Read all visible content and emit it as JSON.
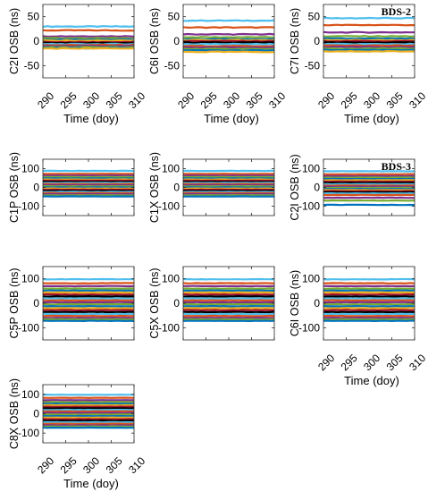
{
  "figure": {
    "chart_data": [
      {
        "type": "line",
        "ylabel": "C2I OSB (ns)",
        "xlabel": "Time (doy)",
        "xlim": [
          290,
          310
        ],
        "ylim": [
          -75,
          75
        ],
        "xticks": [
          "290",
          "295",
          "300",
          "305",
          "310"
        ],
        "yticks": [
          "50",
          "0",
          "-50"
        ],
        "legend": "",
        "series_levels": [
          30,
          22,
          10,
          6,
          3,
          1,
          -2,
          -4,
          -6,
          -8,
          -10,
          -12,
          -14,
          -15
        ]
      },
      {
        "type": "line",
        "ylabel": "C6I OSB (ns)",
        "xlabel": "Time (doy)",
        "xlim": [
          290,
          310
        ],
        "ylim": [
          -75,
          75
        ],
        "xticks": [
          "290",
          "295",
          "300",
          "305",
          "310"
        ],
        "yticks": [
          "50",
          "0",
          "-50"
        ],
        "legend": "",
        "series_levels": [
          42,
          28,
          14,
          8,
          4,
          2,
          0,
          -3,
          -6,
          -10,
          -13,
          -16,
          -19,
          -22
        ]
      },
      {
        "type": "line",
        "ylabel": "C7I OSB (ns)",
        "xlabel": "Time (doy)",
        "xlim": [
          290,
          310
        ],
        "ylim": [
          -75,
          75
        ],
        "xticks": [
          "290",
          "295",
          "300",
          "305",
          "310"
        ],
        "yticks": [
          "50",
          "0",
          "-50"
        ],
        "legend": "BDS-2",
        "series_levels": [
          47,
          33,
          18,
          10,
          5,
          2,
          0,
          -3,
          -6,
          -9,
          -12,
          -15,
          -18,
          -21
        ]
      },
      {
        "type": "line",
        "ylabel": "C1P OSB (ns)",
        "xlabel": "",
        "xlim": [
          290,
          310
        ],
        "ylim": [
          -150,
          150
        ],
        "xticks": [],
        "yticks": [
          "100",
          "0",
          "-100"
        ],
        "legend": "",
        "series_levels": [
          88,
          72,
          63,
          55,
          48,
          42,
          36,
          30,
          24,
          18,
          12,
          6,
          0,
          -6,
          -12,
          -18,
          -24,
          -30,
          -36,
          -42,
          -48
        ]
      },
      {
        "type": "line",
        "ylabel": "C1X OSB (ns)",
        "xlabel": "",
        "xlim": [
          290,
          310
        ],
        "ylim": [
          -150,
          150
        ],
        "xticks": [],
        "yticks": [
          "100",
          "0",
          "-100"
        ],
        "legend": "",
        "series_levels": [
          88,
          72,
          63,
          55,
          48,
          42,
          36,
          30,
          24,
          18,
          12,
          6,
          0,
          -6,
          -12,
          -18,
          -24,
          -30,
          -36,
          -42,
          -48
        ]
      },
      {
        "type": "line",
        "ylabel": "C2I OSB (ns)",
        "xlabel": "",
        "xlim": [
          290,
          310
        ],
        "ylim": [
          -150,
          150
        ],
        "xticks": [],
        "yticks": [
          "100",
          "0",
          "-100"
        ],
        "legend": "BDS-3",
        "series_levels": [
          86,
          70,
          60,
          52,
          45,
          38,
          31,
          24,
          17,
          10,
          4,
          -2,
          -8,
          -14,
          -20,
          -26,
          -32,
          -40,
          -55,
          -70,
          -93
        ]
      },
      {
        "type": "line",
        "ylabel": "C5P OSB (ns)",
        "xlabel": "",
        "xlim": [
          290,
          310
        ],
        "ylim": [
          -150,
          150
        ],
        "xticks": [],
        "yticks": [
          "100",
          "0",
          "-100"
        ],
        "legend": "",
        "series_levels": [
          98,
          82,
          70,
          60,
          52,
          44,
          36,
          28,
          20,
          12,
          4,
          -4,
          -12,
          -20,
          -28,
          -36,
          -44,
          -52,
          -60,
          -66,
          -72
        ]
      },
      {
        "type": "line",
        "ylabel": "C5X OSB (ns)",
        "xlabel": "",
        "xlim": [
          290,
          310
        ],
        "ylim": [
          -150,
          150
        ],
        "xticks": [],
        "yticks": [
          "100",
          "0",
          "-100"
        ],
        "legend": "",
        "series_levels": [
          98,
          82,
          70,
          60,
          52,
          44,
          36,
          28,
          20,
          12,
          4,
          -4,
          -12,
          -20,
          -28,
          -36,
          -44,
          -52,
          -60,
          -66,
          -72
        ]
      },
      {
        "type": "line",
        "ylabel": "C6I OSB (ns)",
        "xlabel": "Time (doy)",
        "xlim": [
          290,
          310
        ],
        "ylim": [
          -150,
          150
        ],
        "xticks": [
          "290",
          "295",
          "300",
          "305",
          "310"
        ],
        "yticks": [
          "100",
          "0",
          "-100"
        ],
        "legend": "",
        "series_levels": [
          98,
          82,
          70,
          60,
          52,
          44,
          36,
          28,
          20,
          12,
          4,
          -4,
          -12,
          -20,
          -28,
          -36,
          -44,
          -52,
          -60,
          -66,
          -72
        ]
      },
      {
        "type": "line",
        "ylabel": "C8X OSB (ns)",
        "xlabel": "Time (doy)",
        "xlim": [
          290,
          310
        ],
        "ylim": [
          -150,
          150
        ],
        "xticks": [
          "290",
          "295",
          "300",
          "305",
          "310"
        ],
        "yticks": [
          "100",
          "0",
          "-100"
        ],
        "legend": "",
        "series_levels": [
          98,
          82,
          70,
          60,
          52,
          44,
          36,
          28,
          20,
          12,
          4,
          -4,
          -12,
          -20,
          -28,
          -36,
          -44,
          -52,
          -60,
          -66,
          -72
        ]
      }
    ],
    "palette": [
      "#4DBEEE",
      "#D95319",
      "#7E2F8E",
      "#77AC30",
      "#0072BD",
      "#EDB120",
      "#A2142F",
      "#000000"
    ]
  }
}
